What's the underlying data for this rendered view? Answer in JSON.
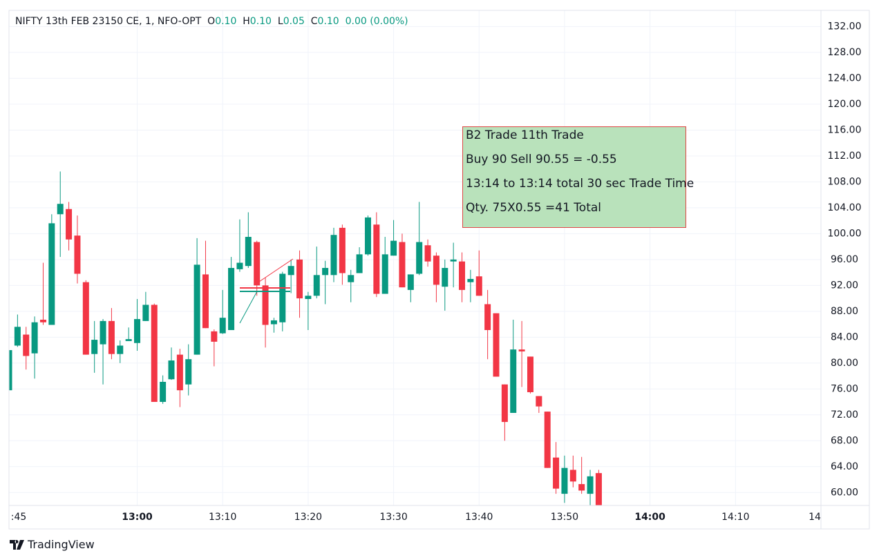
{
  "chart_data": {
    "type": "candlestick",
    "ohlc_legend": {
      "symbol": "NIFTY 13th FEB 23150 CE, 1, NFO-OPT",
      "o_label": "O",
      "o": "0.10",
      "h_label": "H",
      "h": "0.10",
      "l_label": "L",
      "l": "0.05",
      "c_label": "C",
      "c": "0.10",
      "change": "0.00 (0.00%)"
    },
    "up_color": "#089981",
    "down_color": "#f23645",
    "x": [
      "12:45",
      "12:46",
      "12:47",
      "12:48",
      "12:49",
      "12:50",
      "12:51",
      "12:52",
      "12:53",
      "12:54",
      "12:55",
      "12:56",
      "12:57",
      "12:58",
      "12:59",
      "13:00",
      "13:01",
      "13:02",
      "13:03",
      "13:04",
      "13:05",
      "13:06",
      "13:07",
      "13:08",
      "13:09",
      "13:10",
      "13:11",
      "13:12",
      "13:13",
      "13:14",
      "13:15",
      "13:16",
      "13:17",
      "13:18",
      "13:19",
      "13:20",
      "13:21",
      "13:22",
      "13:23",
      "13:24",
      "13:25",
      "13:26",
      "13:27",
      "13:28",
      "13:29",
      "13:30",
      "13:31",
      "13:32",
      "13:33",
      "13:34",
      "13:35",
      "13:36",
      "13:37",
      "13:38",
      "13:39",
      "13:40",
      "13:41",
      "13:42",
      "13:43",
      "13:44",
      "13:45",
      "13:46",
      "13:47",
      "13:48",
      "13:49",
      "13:50",
      "13:51",
      "13:52",
      "13:53",
      "13:54"
    ],
    "open": [
      75.8,
      82.7,
      84.4,
      81.5,
      86.7,
      85.9,
      103,
      103.8,
      99.7,
      92.5,
      81.4,
      82.9,
      86.5,
      81.4,
      83.4,
      83.1,
      86.5,
      89,
      74,
      77.5,
      81.3,
      76.7,
      81.3,
      93.7,
      84.9,
      84.6,
      85.1,
      94.5,
      95,
      98.7,
      92,
      86,
      86.3,
      93.6,
      96,
      89.9,
      90.4,
      93.6,
      93.6,
      100.9,
      92.5,
      93.9,
      96.8,
      101.4,
      90.7,
      96.6,
      98.7,
      91.3,
      93.8,
      98.2,
      96.6,
      91.8,
      95.7,
      95.7,
      92.5,
      93.4,
      89.1,
      87.7,
      76.7,
      72.3,
      82.1,
      81,
      74.9,
      72.5,
      65.4,
      59.8,
      63.5,
      61.3,
      59.8,
      63
    ],
    "high": [
      84.1,
      87.5,
      85.6,
      87.2,
      95.5,
      103,
      109.6,
      104.9,
      102.8,
      92.8,
      86.5,
      86.8,
      88.5,
      83.5,
      85.5,
      89.9,
      91,
      89.2,
      78.1,
      82.4,
      82.2,
      82.9,
      99.3,
      98.9,
      85.2,
      91.3,
      96.4,
      102.2,
      103.3,
      98.9,
      93.2,
      87,
      94.1,
      96,
      97.4,
      91,
      98,
      95.8,
      100.9,
      101.4,
      94.4,
      97.9,
      102.8,
      103.3,
      99.5,
      102.1,
      100,
      93.7,
      104.9,
      99.1,
      97.1,
      96,
      98.6,
      97.1,
      94.4,
      97.4,
      91.3,
      87.7,
      76.7,
      86.7,
      86.5,
      81,
      74.9,
      72.5,
      67.8,
      65.7,
      65.7,
      65.5,
      63.5,
      63.5
    ],
    "low": [
      73.7,
      82.5,
      79,
      77.6,
      85.9,
      85.9,
      96.4,
      97.4,
      92.3,
      81.3,
      78.5,
      76.7,
      80.6,
      80,
      83.4,
      81.9,
      86.5,
      74,
      73.7,
      77.4,
      73.2,
      75,
      81.3,
      85.4,
      79.5,
      84.5,
      85.1,
      94.1,
      94.7,
      90.4,
      82.4,
      84.7,
      84.9,
      90.8,
      87,
      85.1,
      90,
      89.1,
      92.5,
      92.1,
      89.4,
      93.9,
      96.6,
      90.2,
      90.7,
      96.6,
      91.7,
      89.4,
      93.6,
      94.9,
      89.4,
      88.1,
      91.7,
      89.4,
      89.4,
      90.4,
      80.6,
      77.9,
      68,
      72.3,
      76.3,
      75.3,
      72.3,
      63.8,
      59.8,
      58.4,
      60.8,
      59.8,
      58,
      58
    ],
    "close": [
      82,
      85.6,
      81.1,
      86.3,
      86.3,
      101.6,
      104.6,
      99.1,
      93.8,
      81.3,
      83.6,
      86.5,
      81.4,
      82.7,
      83.7,
      86.8,
      89,
      74,
      77.1,
      80.4,
      75.8,
      80.6,
      95.2,
      85.4,
      83.3,
      87,
      94.7,
      95.5,
      99.5,
      92,
      85.9,
      86.6,
      93.8,
      95,
      90,
      90.4,
      93.6,
      94.7,
      99.8,
      93.9,
      93.6,
      96.8,
      102.5,
      90.7,
      96.8,
      98.9,
      91.7,
      93.7,
      98.7,
      95.7,
      92.1,
      94.7,
      96,
      91.3,
      93,
      90.4,
      85.1,
      77.9,
      70.9,
      82.1,
      81.8,
      75.5,
      73.3,
      63.8,
      60.6,
      63.8,
      61.7,
      60.3,
      62.5,
      58
    ],
    "xlim": [
      "12:45",
      "14:20"
    ],
    "xticks": [
      {
        "value": "12:45",
        "label": ":45"
      },
      "13:00",
      "13:10",
      "13:20",
      "13:30",
      "13:40",
      "13:50",
      "14:00",
      "14:10",
      {
        "value": "14:20",
        "label": "14"
      }
    ],
    "ylim": [
      58,
      134.5
    ],
    "yticks": [
      {
        "value": 60,
        "label": "60.00"
      },
      {
        "value": 64,
        "label": "64.00"
      },
      {
        "value": 68,
        "label": "68.00"
      },
      {
        "value": 72,
        "label": "72.00"
      },
      {
        "value": 76,
        "label": "76.00"
      },
      {
        "value": 80,
        "label": "80.00"
      },
      {
        "value": 84,
        "label": "84.00"
      },
      {
        "value": 88,
        "label": "88.00"
      },
      {
        "value": 92,
        "label": "92.00"
      },
      {
        "value": 96,
        "label": "96.00"
      },
      {
        "value": 100,
        "label": "100.00"
      },
      {
        "value": 104,
        "label": "104.00"
      },
      {
        "value": 108,
        "label": "108.00"
      },
      {
        "value": 112,
        "label": "112.00"
      },
      {
        "value": 116,
        "label": "116.00"
      },
      {
        "value": 120,
        "label": "120.00"
      },
      {
        "value": 124,
        "label": "124.00"
      },
      {
        "value": 128,
        "label": "128.00"
      },
      {
        "value": 132,
        "label": "132.00"
      }
    ],
    "grid": true,
    "annotation": [
      "B2 Trade 11th Trade",
      "Buy 90 Sell 90.55 = -0.55",
      "13:14 to 13:14 total 30 sec Trade Time",
      "Qty. 75X0.55 =41 Total"
    ]
  },
  "footer": {
    "brand": "TradingView"
  }
}
